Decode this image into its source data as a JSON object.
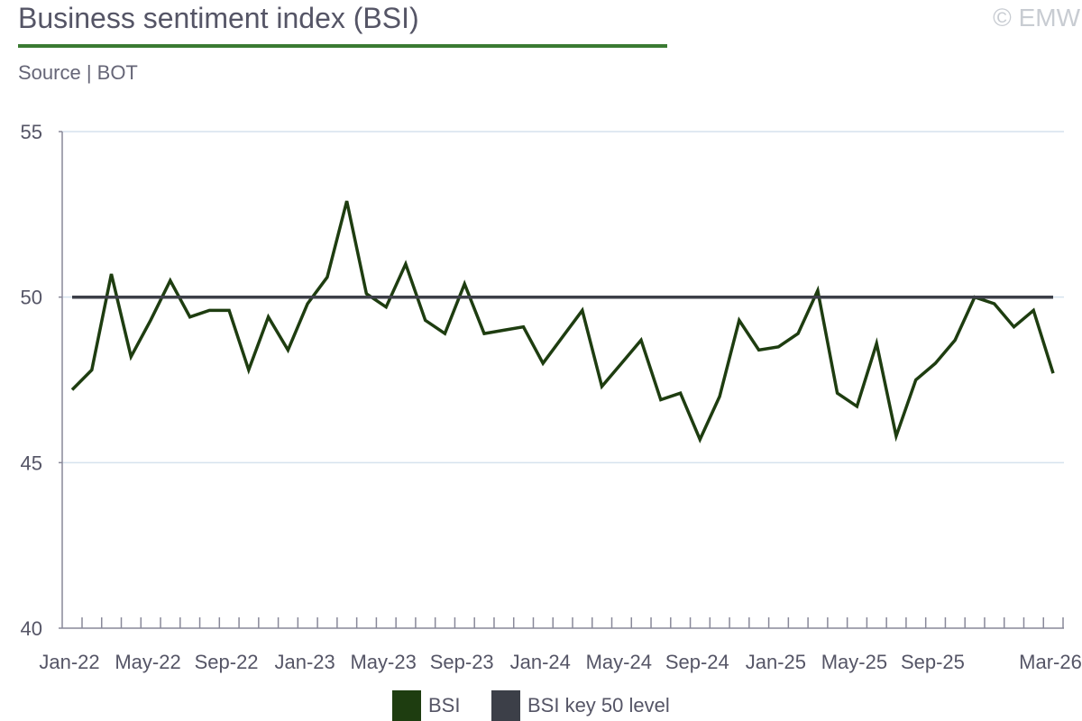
{
  "header": {
    "title": "Business sentiment index (BSI)",
    "copyright": "© EMW",
    "source": "Source | BOT"
  },
  "colors": {
    "bsi": "#1e3d10",
    "key": "#3c3f48",
    "grid": "#d6e2ee",
    "axis": "#888899",
    "accent": "#3a7a32"
  },
  "chart_data": {
    "type": "line",
    "title": "Business sentiment index (BSI)",
    "xlabel": "",
    "ylabel": "",
    "ylim": [
      40,
      55
    ],
    "yticks": [
      40,
      45,
      50,
      55
    ],
    "grid": true,
    "legend_position": "bottom",
    "x": [
      "Jan-22",
      "Feb-22",
      "Mar-22",
      "Apr-22",
      "May-22",
      "Jun-22",
      "Jul-22",
      "Aug-22",
      "Sep-22",
      "Oct-22",
      "Nov-22",
      "Dec-22",
      "Jan-23",
      "Feb-23",
      "Mar-23",
      "Apr-23",
      "May-23",
      "Jun-23",
      "Jul-23",
      "Aug-23",
      "Sep-23",
      "Oct-23",
      "Nov-23",
      "Dec-23",
      "Jan-24",
      "Feb-24",
      "Mar-24",
      "Apr-24",
      "May-24",
      "Jun-24",
      "Jul-24",
      "Aug-24",
      "Sep-24",
      "Oct-24",
      "Nov-24",
      "Dec-24",
      "Jan-25",
      "Feb-25",
      "Mar-25",
      "Apr-25",
      "May-25",
      "Jun-25",
      "Jul-25",
      "Aug-25",
      "Sep-25",
      "Oct-25",
      "Nov-25",
      "Dec-25",
      "Jan-26",
      "Feb-26",
      "Mar-26"
    ],
    "xtick_labels": [
      {
        "index": 0,
        "label": "Jan-22"
      },
      {
        "index": 4,
        "label": "May-22"
      },
      {
        "index": 8,
        "label": "Sep-22"
      },
      {
        "index": 12,
        "label": "Jan-23"
      },
      {
        "index": 16,
        "label": "May-23"
      },
      {
        "index": 20,
        "label": "Sep-23"
      },
      {
        "index": 24,
        "label": "Jan-24"
      },
      {
        "index": 28,
        "label": "May-24"
      },
      {
        "index": 32,
        "label": "Sep-24"
      },
      {
        "index": 36,
        "label": "Jan-25"
      },
      {
        "index": 40,
        "label": "May-25"
      },
      {
        "index": 44,
        "label": "Sep-25"
      },
      {
        "index": 50,
        "label": "Mar-26"
      }
    ],
    "series": [
      {
        "name": "BSI",
        "values": [
          47.2,
          47.8,
          50.7,
          48.2,
          49.3,
          50.5,
          49.4,
          49.6,
          49.6,
          47.8,
          49.4,
          48.4,
          49.8,
          50.6,
          52.9,
          50.1,
          49.7,
          51.0,
          49.3,
          48.9,
          50.4,
          48.9,
          49.0,
          49.1,
          48.0,
          48.8,
          49.6,
          47.3,
          48.0,
          48.7,
          46.9,
          47.1,
          45.7,
          47.0,
          49.3,
          48.4,
          48.5,
          48.9,
          50.2,
          47.1,
          46.7,
          48.6,
          45.8,
          47.5,
          48.0,
          48.7,
          50.0,
          49.8,
          49.1,
          49.6,
          47.7
        ]
      },
      {
        "name": "BSI key 50 level",
        "values": [
          50,
          50,
          50,
          50,
          50,
          50,
          50,
          50,
          50,
          50,
          50,
          50,
          50,
          50,
          50,
          50,
          50,
          50,
          50,
          50,
          50,
          50,
          50,
          50,
          50,
          50,
          50,
          50,
          50,
          50,
          50,
          50,
          50,
          50,
          50,
          50,
          50,
          50,
          50,
          50,
          50,
          50,
          50,
          50,
          50,
          50,
          50,
          50,
          50,
          50,
          50
        ]
      }
    ]
  },
  "legend": [
    {
      "label": "BSI",
      "color": "#1e3d10"
    },
    {
      "label": "BSI key 50 level",
      "color": "#3c3f48"
    }
  ]
}
